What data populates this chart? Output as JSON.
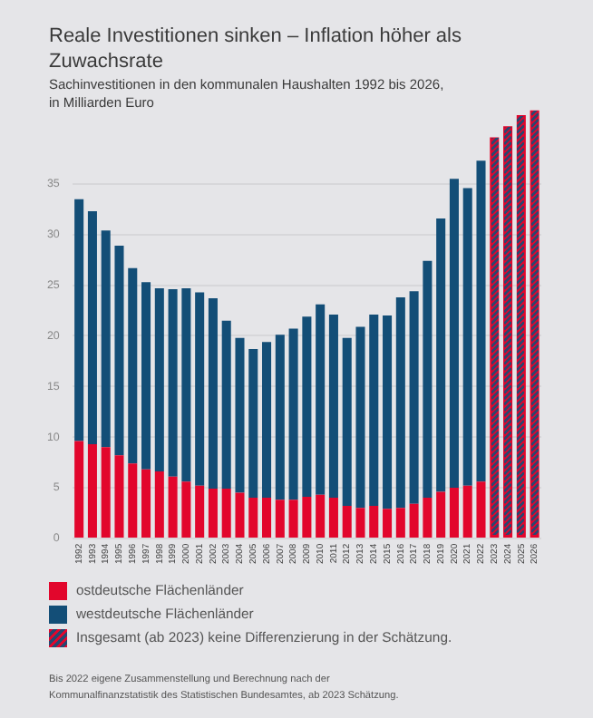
{
  "chart_data": {
    "type": "bar",
    "title": "Reale Investitionen sinken – Inflation höher als Zuwachsrate",
    "subtitle": "Sachinvestitionen in den kommunalen Haushalten 1992 bis 2026,\nin Milliarden Euro",
    "categories": [
      "1992",
      "1993",
      "1994",
      "1995",
      "1996",
      "1997",
      "1998",
      "1999",
      "2000",
      "2001",
      "2002",
      "2003",
      "2004",
      "2005",
      "2006",
      "2007",
      "2008",
      "2009",
      "2010",
      "2011",
      "2012",
      "2013",
      "2014",
      "2015",
      "2016",
      "2017",
      "2018",
      "2019",
      "2020",
      "2021",
      "2022",
      "2023",
      "2024",
      "2025",
      "2026"
    ],
    "series": [
      {
        "name": "ostdeutsche Flächenländer",
        "color": "#e2062c",
        "values": [
          9.6,
          9.3,
          9.0,
          8.2,
          7.4,
          6.8,
          6.6,
          6.1,
          5.6,
          5.2,
          4.9,
          4.9,
          4.5,
          4.0,
          4.0,
          3.8,
          3.8,
          4.1,
          4.3,
          4.0,
          3.2,
          3.0,
          3.2,
          2.9,
          3.0,
          3.4,
          4.0,
          4.6,
          5.0,
          5.2,
          5.6,
          null,
          null,
          null,
          null
        ]
      },
      {
        "name": "westdeutsche Flächenländer",
        "color": "#134e77",
        "values": [
          23.9,
          23.0,
          21.4,
          20.7,
          19.3,
          18.5,
          18.1,
          18.5,
          19.1,
          19.1,
          18.8,
          16.6,
          15.3,
          14.7,
          15.4,
          16.3,
          16.9,
          17.8,
          18.8,
          18.1,
          16.6,
          17.9,
          18.9,
          19.1,
          20.8,
          21.0,
          23.4,
          27.0,
          30.5,
          29.4,
          31.7,
          null,
          null,
          null,
          null
        ]
      },
      {
        "name": "Insgesamt (ab 2023) keine Differenzierung in der Schätzung.",
        "color": "#e2062c",
        "values": [
          null,
          null,
          null,
          null,
          null,
          null,
          null,
          null,
          null,
          null,
          null,
          null,
          null,
          null,
          null,
          null,
          null,
          null,
          null,
          null,
          null,
          null,
          null,
          null,
          null,
          null,
          null,
          null,
          null,
          null,
          null,
          39.6,
          40.7,
          41.8,
          42.3
        ]
      }
    ],
    "stacked": true,
    "ylim": [
      0,
      42.3
    ],
    "yticks": [
      0,
      5,
      10,
      15,
      20,
      25,
      30,
      35
    ],
    "grid": "y",
    "legend": "bottom",
    "annotations": [
      "Bis 2022 eigene Zusammenstellung und Berechnung nach der\nKommunalfinanzstatistik des Statistischen Bundesamtes, ab 2023 Schätzung."
    ]
  }
}
